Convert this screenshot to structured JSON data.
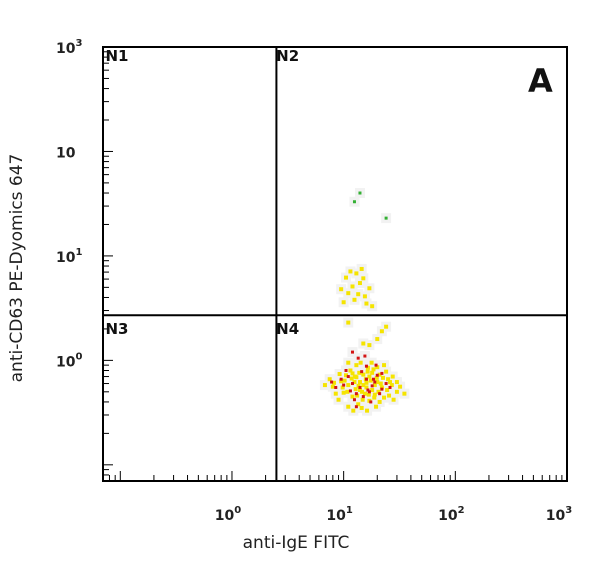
{
  "chart_data": {
    "type": "scatter",
    "panel_label": "A",
    "xlabel": "anti-IgE FITC",
    "ylabel": "anti-CD63 PE-Dyomics 647",
    "x_scale": "log",
    "y_scale": "log",
    "xlim": [
      0.07,
      1000
    ],
    "ylim": [
      0.07,
      1000
    ],
    "x_ticks": [
      {
        "value": 1,
        "base": "10",
        "exp": "0"
      },
      {
        "value": 10,
        "base": "10",
        "exp": "1"
      },
      {
        "value": 100,
        "base": "10",
        "exp": "2"
      },
      {
        "value": 1000,
        "base": "10",
        "exp": "3"
      }
    ],
    "y_ticks": [
      {
        "value": 1,
        "base": "10",
        "exp": "0"
      },
      {
        "value": 10,
        "base": "10",
        "exp": "1"
      },
      {
        "value": 100,
        "base": "10",
        "exp": ""
      },
      {
        "value": 1000,
        "base": "10",
        "exp": "3"
      }
    ],
    "gates": {
      "x": 2.5,
      "y": 2.7
    },
    "quadrants": [
      {
        "name": "N1",
        "x": 0.08,
        "y": 800
      },
      {
        "name": "N2",
        "x": 2.7,
        "y": 800
      },
      {
        "name": "N3",
        "x": 0.08,
        "y": 1.95
      },
      {
        "name": "N4",
        "x": 2.7,
        "y": 1.95
      }
    ],
    "colors": {
      "low_density": "#f5e400",
      "high_density": "#d41414",
      "sparse": "#33b033",
      "halo": "#f2f2f2",
      "axis": "#000000"
    },
    "series": [
      {
        "points": [
          [
            14,
            0.52
          ],
          [
            16,
            0.61
          ],
          [
            11,
            0.58
          ],
          [
            19,
            0.47
          ],
          [
            13,
            0.69
          ],
          [
            22,
            0.55
          ],
          [
            9.5,
            0.63
          ],
          [
            17,
            0.41
          ],
          [
            12,
            0.45
          ],
          [
            25,
            0.66
          ],
          [
            15,
            0.73
          ],
          [
            10,
            0.49
          ],
          [
            20,
            0.62
          ],
          [
            8,
            0.56
          ],
          [
            18,
            0.52
          ],
          [
            13.5,
            0.38
          ],
          [
            23,
            0.44
          ],
          [
            11.5,
            0.8
          ],
          [
            16.5,
            0.85
          ],
          [
            27,
            0.58
          ],
          [
            7.5,
            0.66
          ],
          [
            14.5,
            0.35
          ],
          [
            21,
            0.73
          ],
          [
            12.5,
            0.62
          ],
          [
            9,
            0.42
          ],
          [
            30,
            0.5
          ],
          [
            17.5,
            0.64
          ],
          [
            10.5,
            0.72
          ],
          [
            19.5,
            0.36
          ],
          [
            15.5,
            0.48
          ],
          [
            13,
            0.9
          ],
          [
            24,
            0.78
          ],
          [
            8.5,
            0.48
          ],
          [
            18.5,
            0.82
          ],
          [
            11,
            0.36
          ],
          [
            28,
            0.42
          ],
          [
            16,
            0.55
          ],
          [
            12,
            0.75
          ],
          [
            20.5,
            0.5
          ],
          [
            14,
            0.62
          ],
          [
            9.8,
            0.55
          ],
          [
            26,
            0.62
          ],
          [
            17,
            0.7
          ],
          [
            13.2,
            0.46
          ],
          [
            22.5,
            0.68
          ],
          [
            15,
            0.58
          ],
          [
            10.2,
            0.64
          ],
          [
            19,
            0.58
          ],
          [
            12.8,
            0.53
          ],
          [
            16.8,
            0.47
          ],
          [
            21.5,
            0.6
          ],
          [
            11.8,
            0.67
          ],
          [
            14.8,
            0.42
          ],
          [
            18,
            0.76
          ],
          [
            13.6,
            0.57
          ],
          [
            24.5,
            0.52
          ],
          [
            32,
            0.56
          ],
          [
            6.8,
            0.58
          ],
          [
            35,
            0.48
          ],
          [
            16.2,
            0.33
          ],
          [
            12.2,
            0.33
          ],
          [
            20,
            0.86
          ],
          [
            14.2,
            0.95
          ],
          [
            17.8,
            0.95
          ],
          [
            11,
            0.95
          ],
          [
            23,
            0.9
          ],
          [
            9.2,
            0.74
          ],
          [
            27.5,
            0.7
          ],
          [
            8.2,
            0.61
          ],
          [
            15.8,
            0.66
          ],
          [
            19.8,
            0.68
          ],
          [
            13.8,
            0.76
          ],
          [
            10.8,
            0.5
          ],
          [
            25.5,
            0.46
          ],
          [
            18.8,
            0.44
          ],
          [
            12.6,
            0.7
          ],
          [
            16.4,
            0.78
          ],
          [
            21,
            0.4
          ],
          [
            14.6,
            0.5
          ],
          [
            30,
            0.62
          ]
        ]
      },
      {
        "points": [
          [
            14,
            0.55
          ],
          [
            12,
            0.6
          ],
          [
            17,
            0.5
          ],
          [
            11,
            0.7
          ],
          [
            19,
            0.62
          ],
          [
            15,
            0.45
          ],
          [
            10,
            0.58
          ],
          [
            22,
            0.53
          ],
          [
            13,
            0.48
          ],
          [
            16,
            0.66
          ],
          [
            8.5,
            0.55
          ],
          [
            20,
            0.72
          ],
          [
            12.5,
            0.42
          ],
          [
            18,
            0.57
          ],
          [
            9.5,
            0.66
          ],
          [
            24,
            0.6
          ],
          [
            14.5,
            0.78
          ],
          [
            11.5,
            0.51
          ],
          [
            17.5,
            0.4
          ],
          [
            21,
            0.48
          ],
          [
            13.5,
            1.05
          ],
          [
            19.5,
            0.9
          ],
          [
            16,
            0.88
          ],
          [
            10.5,
            0.8
          ],
          [
            15.5,
            1.1
          ],
          [
            12,
            1.2
          ],
          [
            26,
            0.55
          ],
          [
            7.8,
            0.62
          ],
          [
            18.5,
            0.66
          ],
          [
            13,
            0.36
          ],
          [
            22,
            0.75
          ],
          [
            16.5,
            0.52
          ]
        ]
      },
      {
        "points": [
          [
            11,
            4.4
          ],
          [
            12.5,
            3.8
          ],
          [
            14,
            5.5
          ],
          [
            10.5,
            6.2
          ],
          [
            15.5,
            4.1
          ],
          [
            9.5,
            4.8
          ],
          [
            13,
            6.8
          ],
          [
            16,
            3.5
          ],
          [
            12,
            5.1
          ],
          [
            14.5,
            7.5
          ],
          [
            10,
            3.6
          ],
          [
            17,
            4.9
          ],
          [
            11.5,
            7.1
          ],
          [
            13.5,
            4.3
          ],
          [
            15,
            6.1
          ],
          [
            18,
            3.3
          ],
          [
            20,
            1.6
          ],
          [
            22,
            1.9
          ],
          [
            17,
            1.4
          ],
          [
            24,
            2.1
          ],
          [
            11,
            2.3
          ],
          [
            15,
            1.45
          ]
        ]
      },
      {
        "points": [
          [
            12.5,
            33
          ],
          [
            14,
            40
          ],
          [
            24,
            23
          ]
        ]
      }
    ]
  }
}
